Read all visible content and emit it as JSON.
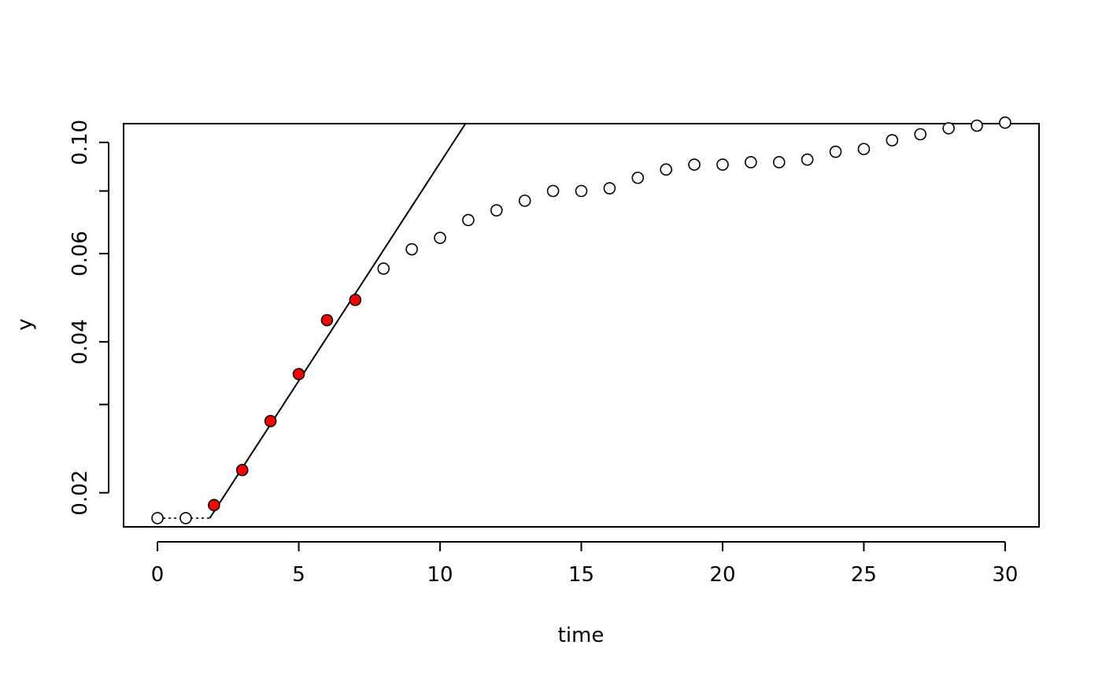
{
  "chart_data": {
    "type": "scatter",
    "title": "",
    "xlabel": "time",
    "ylabel": "y",
    "y_scale": "log",
    "grid": false,
    "xlim": [
      -1.2,
      31.2
    ],
    "ylim": [
      0.0171,
      0.109
    ],
    "x_ticks": [
      0,
      5,
      10,
      15,
      20,
      25,
      30
    ],
    "x_tick_labels": [
      "0",
      "5",
      "10",
      "15",
      "20",
      "25",
      "30"
    ],
    "y_ticks": [
      0.02,
      0.03,
      0.04,
      0.06,
      0.08,
      0.1
    ],
    "y_tick_labels": [
      "0.02",
      "",
      "0.04",
      "0.06",
      "",
      "0.10"
    ],
    "series": [
      {
        "points": [
          {
            "x": 0,
            "y": 0.0178,
            "highlight": false
          },
          {
            "x": 1,
            "y": 0.0178,
            "highlight": false
          },
          {
            "x": 2,
            "y": 0.0189,
            "highlight": true
          },
          {
            "x": 3,
            "y": 0.0222,
            "highlight": true
          },
          {
            "x": 4,
            "y": 0.0278,
            "highlight": true
          },
          {
            "x": 5,
            "y": 0.0345,
            "highlight": true
          },
          {
            "x": 6,
            "y": 0.0442,
            "highlight": true
          },
          {
            "x": 7,
            "y": 0.0485,
            "highlight": true
          },
          {
            "x": 8,
            "y": 0.056,
            "highlight": false
          },
          {
            "x": 9,
            "y": 0.0612,
            "highlight": false
          },
          {
            "x": 10,
            "y": 0.0645,
            "highlight": false
          },
          {
            "x": 11,
            "y": 0.07,
            "highlight": false
          },
          {
            "x": 12,
            "y": 0.0732,
            "highlight": false
          },
          {
            "x": 13,
            "y": 0.0765,
            "highlight": false
          },
          {
            "x": 14,
            "y": 0.08,
            "highlight": false
          },
          {
            "x": 15,
            "y": 0.08,
            "highlight": false
          },
          {
            "x": 16,
            "y": 0.081,
            "highlight": false
          },
          {
            "x": 17,
            "y": 0.085,
            "highlight": false
          },
          {
            "x": 18,
            "y": 0.0883,
            "highlight": false
          },
          {
            "x": 19,
            "y": 0.0903,
            "highlight": false
          },
          {
            "x": 20,
            "y": 0.0903,
            "highlight": false
          },
          {
            "x": 21,
            "y": 0.0913,
            "highlight": false
          },
          {
            "x": 22,
            "y": 0.0913,
            "highlight": false
          },
          {
            "x": 23,
            "y": 0.0924,
            "highlight": false
          },
          {
            "x": 24,
            "y": 0.0958,
            "highlight": false
          },
          {
            "x": 25,
            "y": 0.097,
            "highlight": false
          },
          {
            "x": 26,
            "y": 0.101,
            "highlight": false
          },
          {
            "x": 27,
            "y": 0.1038,
            "highlight": false
          },
          {
            "x": 28,
            "y": 0.1067,
            "highlight": false
          },
          {
            "x": 29,
            "y": 0.108,
            "highlight": false
          },
          {
            "x": 30,
            "y": 0.1095,
            "highlight": false
          }
        ]
      }
    ],
    "fit_line": {
      "x": [
        1.85,
        10.9
      ],
      "y": [
        0.0178,
        0.109
      ]
    },
    "lag_line": {
      "x": [
        0,
        1.85
      ],
      "y": [
        0.0178,
        0.0178
      ],
      "style": "dotted"
    },
    "colors": {
      "highlight": "#ff0000",
      "open_point": "#ffffff",
      "stroke": "#000000"
    }
  }
}
